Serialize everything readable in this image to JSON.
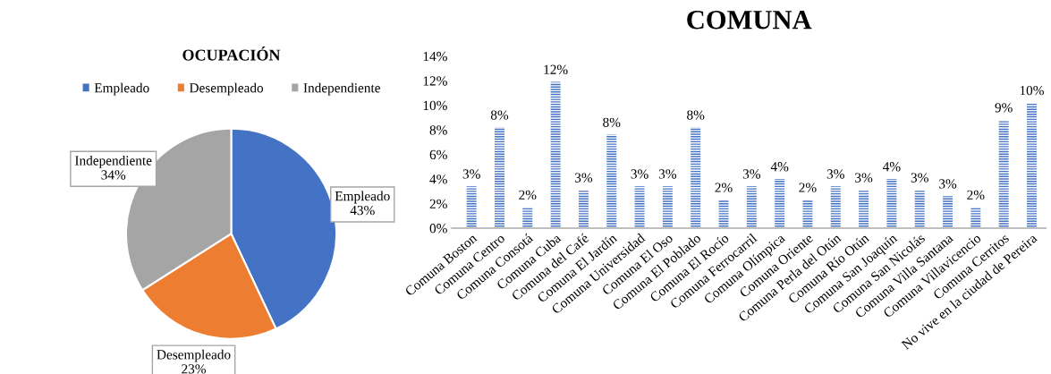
{
  "chart_data": [
    {
      "type": "pie",
      "title": "OCUPACIÓN",
      "categories": [
        "Empleado",
        "Desempleado",
        "Independiente"
      ],
      "values": [
        43,
        23,
        34
      ],
      "colors": [
        "#4472c4",
        "#ed7d31",
        "#a5a5a5"
      ],
      "value_labels": [
        "43%",
        "23%",
        "34%"
      ],
      "legend": "top"
    },
    {
      "type": "bar",
      "title": "COMUNA",
      "categories": [
        "Comuna Boston",
        "Comuna Centro",
        "Comuna Consotá",
        "Comuna Cuba",
        "Comuna del Café",
        "Comuna El Jardín",
        "Comuna Universidad",
        "Comuna El Oso",
        "Comuna El Poblado",
        "Comuna El Rocío",
        "Comuna Ferrocarril",
        "Comuna Olímpica",
        "Comuna Oriente",
        "Comuna Perla del Otún",
        "Comuna Río Otún",
        "Comuna San Joaquín",
        "Comuna San Nicolás",
        "Comuna Villa Santana",
        "Comuna Villavicencio",
        "Comuna Cerritos",
        "No vive en la ciudad de Pereira"
      ],
      "values": [
        3.4,
        8.2,
        1.7,
        11.9,
        3.1,
        7.6,
        3.4,
        3.4,
        8.2,
        2.3,
        3.4,
        4.0,
        2.3,
        3.4,
        3.1,
        4.0,
        3.1,
        2.6,
        1.7,
        8.8,
        10.2
      ],
      "value_labels": [
        "3%",
        "8%",
        "2%",
        "12%",
        "3%",
        "8%",
        "3%",
        "3%",
        "8%",
        "2%",
        "3%",
        "4%",
        "2%",
        "3%",
        "3%",
        "4%",
        "3%",
        "3%",
        "2%",
        "9%",
        "10%"
      ],
      "color": "#4472c4",
      "ylim": [
        0,
        14
      ],
      "yticks": [
        {
          "value": 0,
          "label": "0%"
        },
        {
          "value": 2,
          "label": "2%"
        },
        {
          "value": 4,
          "label": "4%"
        },
        {
          "value": 6,
          "label": "6%"
        },
        {
          "value": 8,
          "label": "8%"
        },
        {
          "value": 10,
          "label": "10%"
        },
        {
          "value": 12,
          "label": "12%"
        },
        {
          "value": 14,
          "label": "14%"
        }
      ],
      "grid": false
    }
  ]
}
